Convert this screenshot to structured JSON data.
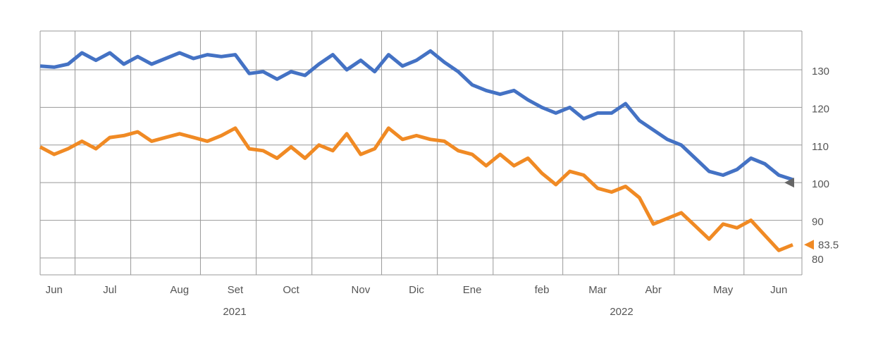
{
  "chart_data": {
    "type": "line",
    "categories": [
      null,
      "Jun",
      null,
      null,
      null,
      "Jul",
      null,
      null,
      null,
      null,
      "Aug",
      null,
      null,
      null,
      "Set",
      null,
      null,
      null,
      "Oct",
      null,
      null,
      null,
      null,
      "Nov",
      null,
      null,
      null,
      "Dic",
      null,
      null,
      null,
      "Ene",
      null,
      null,
      null,
      null,
      "feb",
      null,
      null,
      null,
      "Mar",
      null,
      null,
      null,
      "Abr",
      null,
      null,
      null,
      null,
      "May",
      null,
      null,
      null,
      "Jun",
      null
    ],
    "year_labels": [
      "2021",
      "2022"
    ],
    "series": [
      {
        "color": "#4472c4",
        "values": [
          131,
          130.7,
          131.5,
          134.5,
          132.5,
          134.5,
          131.5,
          133.5,
          131.5,
          133,
          134.5,
          133,
          134,
          133.5,
          134,
          129,
          129.5,
          127.5,
          129.5,
          128.5,
          131.5,
          134,
          130,
          132.5,
          129.5,
          134,
          131,
          132.5,
          135,
          132,
          129.5,
          126,
          124.5,
          123.5,
          124.5,
          122,
          120,
          118.5,
          120,
          117,
          118.5,
          118.5,
          121,
          116.5,
          114,
          111.5,
          110,
          106.5,
          103,
          102,
          103.5,
          106.5,
          105,
          102,
          100.8
        ]
      },
      {
        "color": "#f08a24",
        "values": [
          109.5,
          107.5,
          109,
          111,
          109,
          112,
          112.5,
          113.5,
          111,
          112,
          113,
          112,
          111,
          112.5,
          114.5,
          109,
          108.5,
          106.5,
          109.5,
          106.5,
          110,
          108.5,
          113,
          107.5,
          109,
          114.5,
          111.5,
          112.5,
          111.5,
          111,
          108.5,
          107.5,
          104.5,
          107.5,
          104.5,
          106.5,
          102.5,
          99.5,
          103,
          102,
          98.5,
          97.5,
          99,
          96,
          89,
          90.5,
          92,
          88.5,
          85,
          89,
          88,
          90,
          86,
          82,
          83.5
        ]
      }
    ],
    "ylim": [
      75.5,
      140.3
    ],
    "yticks": [
      80,
      90,
      100,
      110,
      120,
      130
    ],
    "grid": true,
    "markers": [
      {
        "value": 100,
        "color": "#666666"
      },
      {
        "value": 83.5,
        "label": "83.5",
        "color": "#f08a24"
      }
    ]
  }
}
